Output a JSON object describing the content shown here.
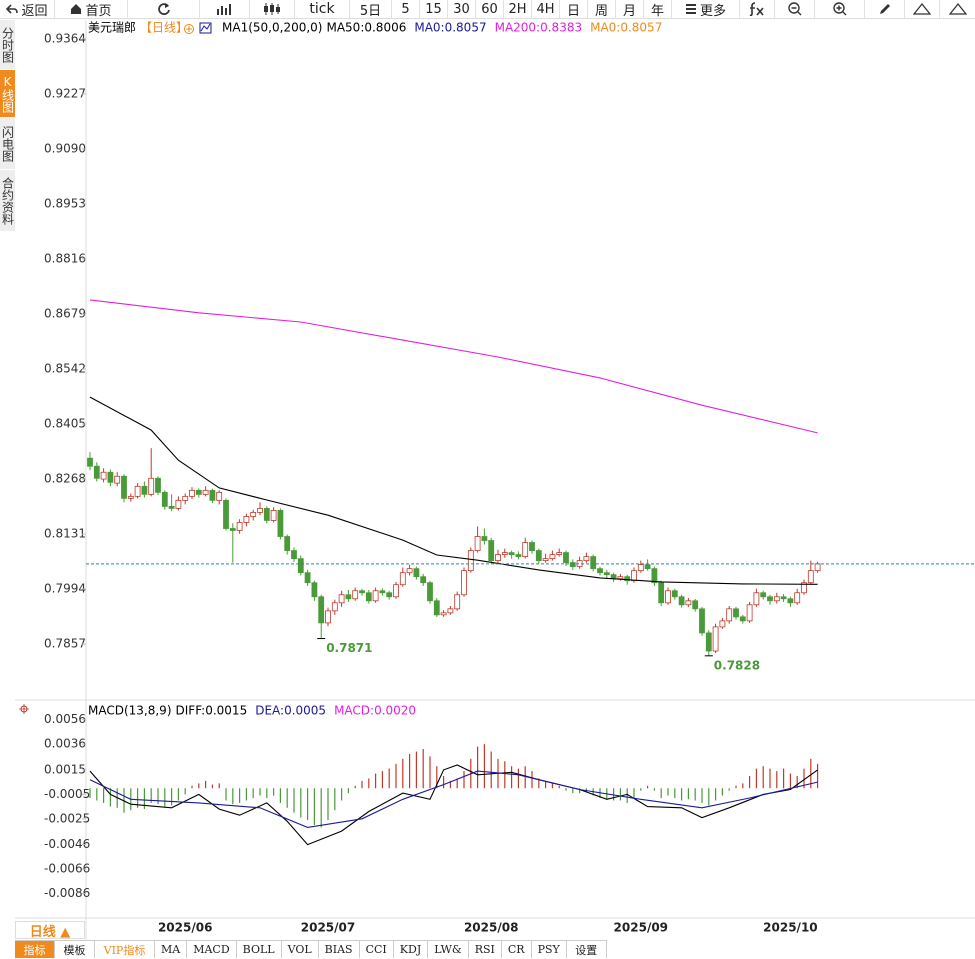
{
  "toolbar": [
    "返回",
    "首页",
    "tick",
    "5日",
    "5",
    "15",
    "30",
    "60",
    "2H",
    "4H",
    "日",
    "周",
    "月",
    "年",
    "更多"
  ],
  "side_tabs": [
    "分时图",
    "K线图",
    "闪电图",
    "合约资料"
  ],
  "bottom_tabs": [
    "指标",
    "模板",
    "VIP指标",
    "MA",
    "MACD",
    "BOLL",
    "VOL",
    "BIAS",
    "CCI",
    "KDJ",
    "LW&",
    "RSI",
    "CR",
    "PSY",
    "设置"
  ],
  "period_button": "日线 ▲",
  "chart_data": [
    {
      "type": "candlestick",
      "title": "美元瑞郎",
      "period": "【日线】",
      "indicator": "MA1(50,0,200,0)",
      "legend": [
        {
          "text": "MA50:0.8006",
          "color": "#000000"
        },
        {
          "text": "MA0:0.8057",
          "color": "#1a1a9a"
        },
        {
          "text": "MA200:0.8383",
          "color": "#e020e0"
        },
        {
          "text": "MA0:0.8057",
          "color": "#f08a1c"
        }
      ],
      "up_color": "#c0392b",
      "down_color": "#4a9a3a",
      "last_price_color": "#2a8a9a",
      "ylim": [
        0.7718,
        0.9406
      ],
      "yticks": [
        0.9364,
        0.9227,
        {
          "value": 0.909,
          "label": "0.9090"
        },
        0.8953,
        0.8816,
        0.8679,
        0.8542,
        0.8405,
        0.8268,
        0.8131,
        0.7994,
        0.7857
      ],
      "ohlc": [
        [
          0.832,
          0.8335,
          0.829,
          0.83
        ],
        [
          0.83,
          0.831,
          0.8262,
          0.827
        ],
        [
          0.8268,
          0.8295,
          0.826,
          0.8285
        ],
        [
          0.8285,
          0.8292,
          0.825,
          0.826
        ],
        [
          0.8258,
          0.8285,
          0.825,
          0.8275
        ],
        [
          0.8275,
          0.828,
          0.821,
          0.822
        ],
        [
          0.822,
          0.8232,
          0.8212,
          0.8225
        ],
        [
          0.8225,
          0.8258,
          0.822,
          0.825
        ],
        [
          0.825,
          0.8262,
          0.8222,
          0.823
        ],
        [
          0.823,
          0.8345,
          0.8225,
          0.827
        ],
        [
          0.827,
          0.8275,
          0.8228,
          0.8235
        ],
        [
          0.8235,
          0.824,
          0.8192,
          0.82
        ],
        [
          0.82,
          0.823,
          0.8188,
          0.8195
        ],
        [
          0.8195,
          0.8225,
          0.819,
          0.8215
        ],
        [
          0.8215,
          0.8232,
          0.8205,
          0.8225
        ],
        [
          0.8225,
          0.8248,
          0.8218,
          0.824
        ],
        [
          0.824,
          0.8245,
          0.8222,
          0.823
        ],
        [
          0.823,
          0.825,
          0.8225,
          0.824
        ],
        [
          0.824,
          0.8244,
          0.8208,
          0.8215
        ],
        [
          0.8215,
          0.824,
          0.8205,
          0.8235
        ],
        [
          0.8215,
          0.822,
          0.814,
          0.8145
        ],
        [
          0.8145,
          0.8158,
          0.806,
          0.814
        ],
        [
          0.814,
          0.8168,
          0.8132,
          0.816
        ],
        [
          0.816,
          0.8182,
          0.815,
          0.8175
        ],
        [
          0.8175,
          0.8192,
          0.8165,
          0.8185
        ],
        [
          0.8185,
          0.821,
          0.8178,
          0.8195
        ],
        [
          0.8195,
          0.82,
          0.8158,
          0.8165
        ],
        [
          0.8165,
          0.8198,
          0.816,
          0.819
        ],
        [
          0.819,
          0.8195,
          0.8118,
          0.8125
        ],
        [
          0.8125,
          0.813,
          0.808,
          0.809
        ],
        [
          0.809,
          0.8098,
          0.8062,
          0.807
        ],
        [
          0.807,
          0.8078,
          0.8028,
          0.8035
        ],
        [
          0.8035,
          0.8042,
          0.8002,
          0.801
        ],
        [
          0.801,
          0.8015,
          0.7965,
          0.7975
        ],
        [
          0.7975,
          0.798,
          0.7871,
          0.791
        ],
        [
          0.791,
          0.7948,
          0.7902,
          0.794
        ],
        [
          0.794,
          0.7968,
          0.793,
          0.796
        ],
        [
          0.796,
          0.799,
          0.795,
          0.798
        ],
        [
          0.798,
          0.7992,
          0.7962,
          0.797
        ],
        [
          0.797,
          0.7998,
          0.7965,
          0.799
        ],
        [
          0.799,
          0.7995,
          0.7978,
          0.7985
        ],
        [
          0.7985,
          0.7992,
          0.7958,
          0.7965
        ],
        [
          0.7965,
          0.7998,
          0.796,
          0.799
        ],
        [
          0.799,
          0.7996,
          0.7978,
          0.7985
        ],
        [
          0.7985,
          0.799,
          0.7968,
          0.7975
        ],
        [
          0.7975,
          0.8012,
          0.797,
          0.8005
        ],
        [
          0.8005,
          0.8048,
          0.8,
          0.8035
        ],
        [
          0.8035,
          0.8055,
          0.8028,
          0.8045
        ],
        [
          0.8045,
          0.805,
          0.8018,
          0.8025
        ],
        [
          0.8025,
          0.8032,
          0.8002,
          0.801
        ],
        [
          0.801,
          0.8015,
          0.7958,
          0.7965
        ],
        [
          0.7965,
          0.7972,
          0.7925,
          0.793
        ],
        [
          0.793,
          0.7942,
          0.7925,
          0.7935
        ],
        [
          0.7935,
          0.7952,
          0.793,
          0.7945
        ],
        [
          0.7945,
          0.7988,
          0.794,
          0.798
        ],
        [
          0.798,
          0.8048,
          0.7975,
          0.804
        ],
        [
          0.804,
          0.8098,
          0.8035,
          0.809
        ],
        [
          0.809,
          0.815,
          0.8085,
          0.8125
        ],
        [
          0.8125,
          0.8145,
          0.8105,
          0.8115
        ],
        [
          0.8115,
          0.8122,
          0.8058,
          0.8065
        ],
        [
          0.8065,
          0.8092,
          0.8058,
          0.808
        ],
        [
          0.808,
          0.8095,
          0.8072,
          0.8085
        ],
        [
          0.8085,
          0.809,
          0.807,
          0.808
        ],
        [
          0.808,
          0.8088,
          0.8068,
          0.8075
        ],
        [
          0.8075,
          0.8122,
          0.807,
          0.811
        ],
        [
          0.811,
          0.8115,
          0.8082,
          0.809
        ],
        [
          0.809,
          0.8095,
          0.8058,
          0.8065
        ],
        [
          0.8065,
          0.8082,
          0.806,
          0.807
        ],
        [
          0.807,
          0.809,
          0.8065,
          0.808
        ],
        [
          0.808,
          0.8095,
          0.8075,
          0.8085
        ],
        [
          0.8085,
          0.809,
          0.8052,
          0.806
        ],
        [
          0.806,
          0.8068,
          0.8042,
          0.805
        ],
        [
          0.805,
          0.8075,
          0.8045,
          0.8065
        ],
        [
          0.8065,
          0.8085,
          0.806,
          0.8075
        ],
        [
          0.8075,
          0.808,
          0.8038,
          0.8045
        ],
        [
          0.8045,
          0.805,
          0.8028,
          0.8035
        ],
        [
          0.8035,
          0.8042,
          0.8022,
          0.803
        ],
        [
          0.803,
          0.8035,
          0.8012,
          0.802
        ],
        [
          0.802,
          0.8032,
          0.8015,
          0.8025
        ],
        [
          0.8025,
          0.803,
          0.8005,
          0.8015
        ],
        [
          0.8015,
          0.8048,
          0.801,
          0.804
        ],
        [
          0.804,
          0.8065,
          0.8035,
          0.8055
        ],
        [
          0.8055,
          0.8068,
          0.804,
          0.8045
        ],
        [
          0.8045,
          0.805,
          0.8002,
          0.801
        ],
        [
          0.801,
          0.8015,
          0.7952,
          0.796
        ],
        [
          0.796,
          0.7998,
          0.7955,
          0.799
        ],
        [
          0.799,
          0.7995,
          0.7968,
          0.7975
        ],
        [
          0.7975,
          0.798,
          0.7948,
          0.7955
        ],
        [
          0.7955,
          0.7972,
          0.795,
          0.7965
        ],
        [
          0.7965,
          0.797,
          0.7938,
          0.7945
        ],
        [
          0.7945,
          0.795,
          0.7878,
          0.7885
        ],
        [
          0.7885,
          0.7892,
          0.7828,
          0.784
        ],
        [
          0.784,
          0.7908,
          0.7835,
          0.79
        ],
        [
          0.79,
          0.7922,
          0.7895,
          0.7915
        ],
        [
          0.7915,
          0.7952,
          0.7908,
          0.7945
        ],
        [
          0.7945,
          0.795,
          0.7918,
          0.7925
        ],
        [
          0.7925,
          0.793,
          0.7908,
          0.7915
        ],
        [
          0.7915,
          0.7962,
          0.791,
          0.7955
        ],
        [
          0.7955,
          0.7995,
          0.795,
          0.7985
        ],
        [
          0.7985,
          0.799,
          0.7968,
          0.7975
        ],
        [
          0.7975,
          0.798,
          0.7955,
          0.7965
        ],
        [
          0.7965,
          0.7985,
          0.7958,
          0.7975
        ],
        [
          0.7975,
          0.7982,
          0.7962,
          0.797
        ],
        [
          0.797,
          0.7975,
          0.795,
          0.796
        ],
        [
          0.796,
          0.7995,
          0.7955,
          0.7985
        ],
        [
          0.7985,
          0.8018,
          0.798,
          0.801
        ],
        [
          0.801,
          0.8065,
          0.8005,
          0.804
        ],
        [
          0.804,
          0.8062,
          0.8035,
          0.8057
        ]
      ],
      "series": [
        {
          "color": "#000000",
          "x": [
            0,
            9,
            13,
            19,
            26,
            35,
            46,
            51,
            57,
            66,
            75,
            84,
            96,
            107
          ],
          "values": [
            0.8472,
            0.839,
            0.8315,
            0.8246,
            0.8216,
            0.8178,
            0.8116,
            0.8079,
            0.8066,
            0.8042,
            0.8022,
            0.8012,
            0.8007,
            0.8006
          ]
        },
        {
          "color": "#e020e0",
          "x": [
            0,
            16,
            31,
            46,
            60,
            75,
            90,
            107
          ],
          "values": [
            0.8714,
            0.8682,
            0.8659,
            0.8614,
            0.8572,
            0.852,
            0.8452,
            0.8383
          ]
        }
      ],
      "low_labels": [
        0.7871,
        0.7828
      ],
      "month_labels": {
        "labels": [
          "2025/06",
          "2025/07",
          "2025/08",
          "2025/09",
          "2025/10"
        ],
        "candles": [
          14,
          35,
          59,
          81,
          103
        ]
      }
    },
    {
      "type": "macd",
      "title": "MACD(13,8,9)",
      "legend": [
        {
          "text": "DIFF:0.0015",
          "color": "#000000"
        },
        {
          "text": "DEA:0.0005",
          "color": "#1a1a9a"
        },
        {
          "text": "MACD:0.0020",
          "color": "#e020e0"
        }
      ],
      "ylim": [
        -0.0106,
        0.0068
      ],
      "yticks": [
        0.0056,
        0.0036,
        0.0015,
        -0.0005,
        -0.0025,
        -0.0046,
        -0.0066,
        -0.0086
      ],
      "up_color": "#c0392b",
      "down_color": "#4a9a3a",
      "histogram": [
        -0.0008,
        -0.001,
        -0.0012,
        -0.0015,
        -0.0016,
        -0.002,
        -0.0018,
        -0.0016,
        -0.0017,
        -0.0012,
        -0.0013,
        -0.0015,
        -0.0014,
        -0.001,
        -0.0005,
        0.0002,
        0.0004,
        0.0006,
        0.0003,
        0.0004,
        -0.001,
        -0.0013,
        -0.0012,
        -0.001,
        -0.0008,
        -0.0006,
        -0.0008,
        -0.0006,
        -0.0012,
        -0.0016,
        -0.002,
        -0.0024,
        -0.0026,
        -0.003,
        -0.0032,
        -0.0026,
        -0.0018,
        -0.001,
        -0.0004,
        0.0002,
        0.0006,
        0.0008,
        0.0012,
        0.0014,
        0.0016,
        0.002,
        0.0024,
        0.0028,
        0.003,
        0.0032,
        0.0026,
        0.0018,
        0.001,
        0.0006,
        0.0008,
        0.0014,
        0.0024,
        0.0034,
        0.0036,
        0.003,
        0.0024,
        0.0022,
        0.0018,
        0.0016,
        0.0018,
        0.0014,
        0.0008,
        0.0006,
        0.0004,
        0.0002,
        -0.0002,
        -0.0004,
        -0.0004,
        -0.0003,
        -0.0006,
        -0.0008,
        -0.0009,
        -0.001,
        -0.001,
        -0.0012,
        -0.0008,
        -0.0002,
        0.0002,
        -0.0002,
        -0.0008,
        -0.0006,
        -0.0008,
        -0.001,
        -0.0009,
        -0.001,
        -0.0012,
        -0.0014,
        -0.001,
        -0.0006,
        -0.0002,
        0.0002,
        0.0004,
        0.001,
        0.0016,
        0.0018,
        0.0016,
        0.0014,
        0.0016,
        0.0012,
        0.001,
        0.0016,
        0.0024,
        0.002
      ],
      "series": [
        {
          "color": "#000000",
          "x": [
            0,
            3,
            6,
            12,
            16,
            19,
            22,
            26,
            29,
            32,
            37,
            41,
            46,
            50,
            52,
            54,
            57,
            62,
            66,
            72,
            76,
            79,
            82,
            87,
            90,
            94,
            99,
            103,
            107
          ],
          "values": [
            0.0014,
            -0.0005,
            -0.0013,
            -0.0016,
            -0.0005,
            -0.0017,
            -0.0022,
            -0.0012,
            -0.0027,
            -0.0046,
            -0.0035,
            -0.0019,
            -0.0004,
            -0.0009,
            0.0015,
            0.0019,
            0.0011,
            0.0013,
            0.0007,
            -0.0001,
            -0.0009,
            -0.0005,
            -0.0015,
            -0.0016,
            -0.0024,
            -0.0016,
            -0.0005,
            -0.0001,
            0.0015
          ]
        },
        {
          "color": "#1a1a9a",
          "x": [
            0,
            6,
            16,
            25,
            32,
            40,
            46,
            52,
            57,
            63,
            72,
            81,
            90,
            97,
            107
          ],
          "values": [
            0.0007,
            -0.0009,
            -0.0012,
            -0.0016,
            -0.0032,
            -0.0025,
            -0.0009,
            0.0003,
            0.0014,
            0.0011,
            -0.0001,
            -0.0009,
            -0.0016,
            -0.0008,
            0.0005
          ]
        }
      ]
    }
  ]
}
